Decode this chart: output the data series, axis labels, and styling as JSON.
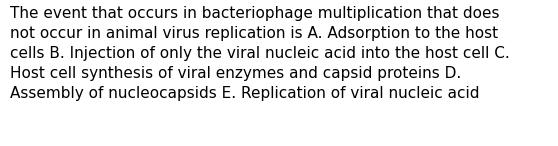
{
  "lines": [
    "The event that occurs in bacteriophage multiplication that does",
    "not occur in animal virus replication is A. Adsorption to the host",
    "cells B. Injection of only the viral nucleic acid into the host cell C.",
    "Host cell synthesis of viral enzymes and capsid proteins D.",
    "Assembly of nucleocapsids E. Replication of viral nucleic acid"
  ],
  "background_color": "#ffffff",
  "text_color": "#000000",
  "font_size": 11.0,
  "fig_width": 5.58,
  "fig_height": 1.46,
  "dpi": 100
}
